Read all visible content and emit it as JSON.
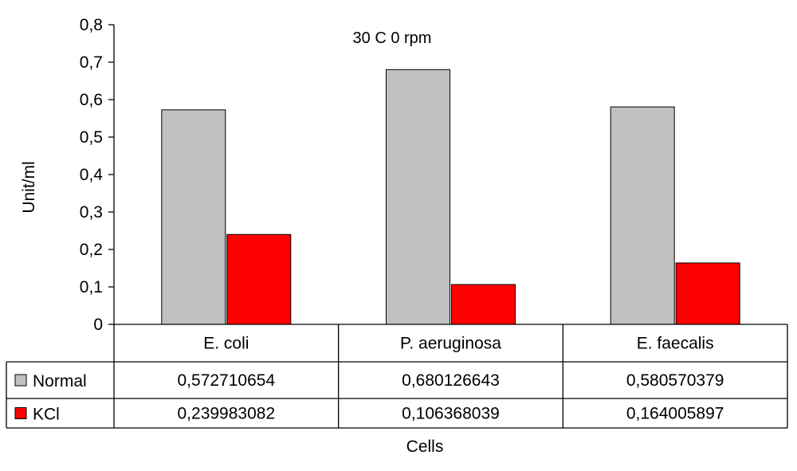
{
  "chart_data": {
    "type": "bar",
    "title": "30 C 0 rpm",
    "xlabel": "Cells",
    "ylabel": "Unit/ml",
    "ylim": [
      0,
      0.8
    ],
    "ytick_values": [
      0,
      0.1,
      0.2,
      0.3,
      0.4,
      0.5,
      0.6,
      0.7,
      0.8
    ],
    "ytick_labels": [
      "0",
      "0,1",
      "0,2",
      "0,3",
      "0,4",
      "0,5",
      "0,6",
      "0,7",
      "0,8"
    ],
    "categories": [
      "E. coli",
      "P. aeruginosa",
      "E. faecalis"
    ],
    "series": [
      {
        "name": "Normal",
        "color": "#c0c0c0",
        "values": [
          0.572710654,
          0.680126643,
          0.580570379
        ],
        "value_labels": [
          "0,572710654",
          "0,680126643",
          "0,580570379"
        ]
      },
      {
        "name": "KCl",
        "color": "#ff0000",
        "values": [
          0.239983082,
          0.106368039,
          0.164005897
        ],
        "value_labels": [
          "0,239983082",
          "0,106368039",
          "0,164005897"
        ]
      }
    ],
    "grid": false,
    "legend": "data-table"
  }
}
